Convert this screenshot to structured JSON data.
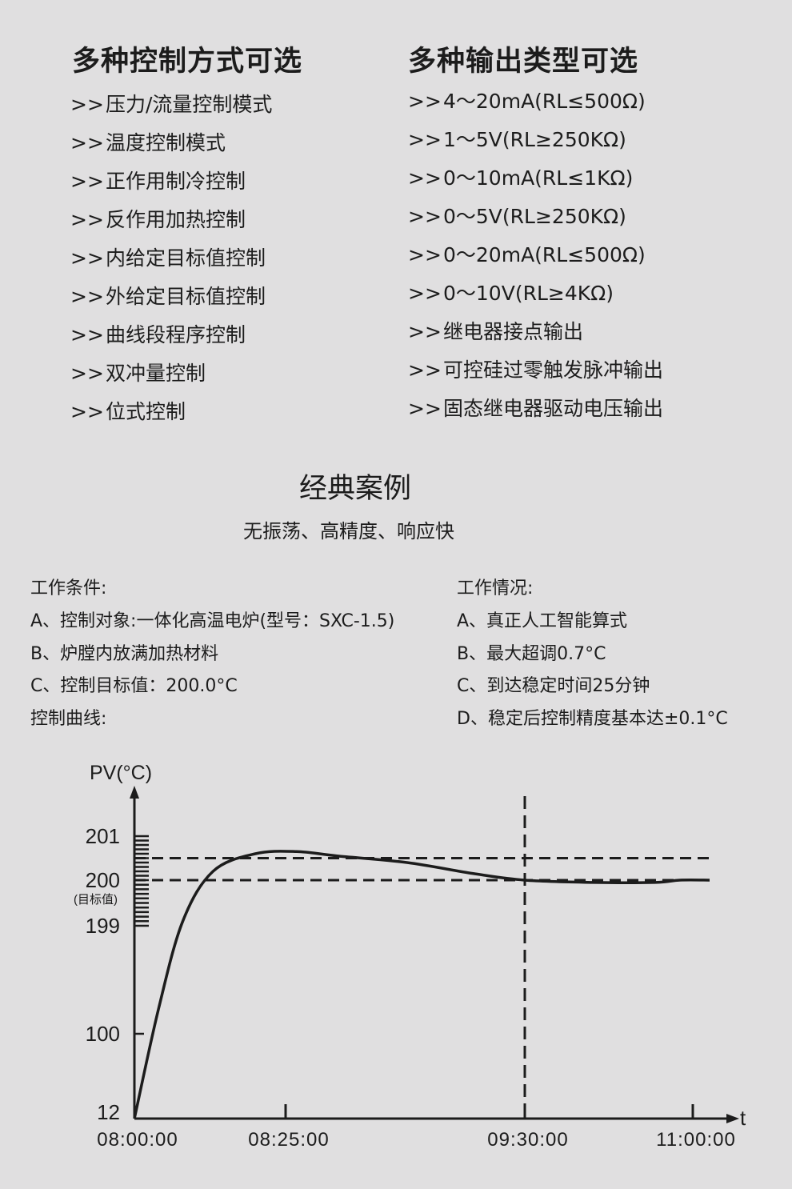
{
  "control_modes": {
    "title": "多种控制方式可选",
    "bullet": ">>",
    "items": [
      "压力/流量控制模式",
      "温度控制模式",
      "正作用制冷控制",
      "反作用加热控制",
      "内给定目标值控制",
      "外给定目标值控制",
      "曲线段程序控制",
      "双冲量控制",
      "位式控制"
    ]
  },
  "output_types": {
    "title": "多种输出类型可选",
    "bullet": ">>",
    "items": [
      "4～20mA(RL≤500Ω)",
      "1～5V(RL≥250KΩ)",
      "0～10mA(RL≤1KΩ)",
      "0～5V(RL≥250KΩ)",
      "0～20mA(RL≤500Ω)",
      "0～10V(RL≥4KΩ)",
      "继电器接点输出",
      "可控硅过零触发脉冲输出",
      "固态继电器驱动电压输出"
    ]
  },
  "case": {
    "title": "经典案例",
    "subtitle": "无振荡、高精度、响应快",
    "conditions": {
      "heading": "工作条件:",
      "items": [
        "A、控制对象:一体化高温电炉(型号：SXC-1.5)",
        "B、炉膛内放满加热材料",
        "C、控制目标值：200.0°C"
      ],
      "curve_label": "控制曲线:"
    },
    "results": {
      "heading": "工作情况:",
      "items": [
        "A、真正人工智能算式",
        "B、最大超调0.7°C",
        "C、到达稳定时间25分钟",
        "D、稳定后控制精度基本达±0.1°C"
      ]
    }
  },
  "chart_data": {
    "type": "line",
    "ylabel": "PV(°C)",
    "xlabel": "t",
    "y_ticks": [
      "201",
      "200",
      "199",
      "100",
      "12"
    ],
    "y_tick_values": [
      201,
      200,
      199,
      100,
      12
    ],
    "target_label": "(目标值)",
    "x_ticks": [
      "08:00:00",
      "08:25:00",
      "09:30:00",
      "11:00:00"
    ],
    "scale": "non-linear (expanded between 199 and 201)",
    "reference_lines": {
      "setpoint": 200,
      "upper": 200.5,
      "vertical_time": "09:30"
    },
    "series": [
      {
        "x": [
          "08:00",
          "08:04",
          "08:08",
          "08:13",
          "08:20",
          "08:28",
          "08:39",
          "08:58",
          "09:16",
          "09:30",
          "10:06",
          "10:40",
          "10:53",
          "11:09"
        ],
        "y": [
          12,
          123,
          199.1,
          200.2,
          200.6,
          200.65,
          200.55,
          200.4,
          200.15,
          200,
          199.95,
          199.95,
          200,
          200
        ]
      }
    ],
    "colors": {
      "line": "#1c1c1c",
      "background": "#e0dfe0"
    }
  }
}
